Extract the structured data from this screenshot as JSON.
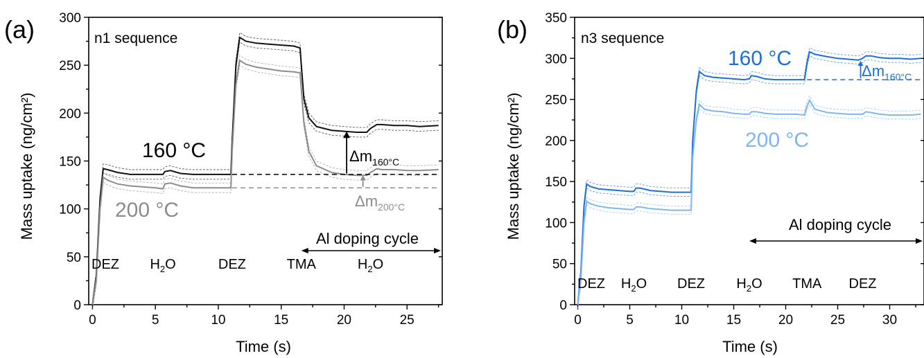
{
  "chart_data": [
    {
      "type": "line",
      "panel_label": "(a)",
      "sequence_label": "n1 sequence",
      "xlabel": "Time (s)",
      "ylabel": "Mass uptake (ng/cm²)",
      "xlim": [
        -0.3,
        27.8
      ],
      "ylim": [
        0,
        300
      ],
      "xticks": [
        0,
        5,
        10,
        15,
        20,
        25
      ],
      "yticks": [
        0,
        50,
        100,
        150,
        200,
        250,
        300
      ],
      "grid": false,
      "series": [
        {
          "name": "160 °C",
          "color": "#111111",
          "x": [
            0,
            0.3,
            0.6,
            0.85,
            1.2,
            2,
            3,
            4,
            5,
            5.6,
            5.75,
            6.2,
            7,
            8,
            9,
            10,
            11,
            11.1,
            11.4,
            11.7,
            12.2,
            13,
            14,
            15,
            16,
            16.5,
            16.6,
            16.8,
            17.2,
            17.8,
            19,
            20,
            21,
            21.8,
            22.1,
            22.6,
            23,
            24,
            25,
            26,
            27.5
          ],
          "y": [
            0,
            30,
            110,
            142,
            141,
            138,
            136,
            136,
            136,
            136,
            139,
            140,
            137,
            136,
            136,
            136,
            136,
            170,
            250,
            279,
            275,
            273,
            272,
            271,
            270,
            268,
            250,
            215,
            195,
            186,
            182,
            181,
            180,
            180,
            184,
            188,
            188,
            187,
            187,
            186,
            187
          ]
        },
        {
          "name": "200 °C",
          "color": "#8c8c8c",
          "x": [
            0,
            0.3,
            0.6,
            0.85,
            1.2,
            2,
            3,
            4,
            5,
            5.6,
            5.75,
            6.2,
            7,
            8,
            9,
            10,
            11,
            11.1,
            11.4,
            11.7,
            12.2,
            13,
            14,
            15,
            16,
            16.5,
            16.6,
            16.8,
            17.2,
            17.8,
            19,
            20,
            21,
            21.8,
            22.1,
            22.6,
            23,
            24,
            25,
            26,
            27.5
          ],
          "y": [
            0,
            25,
            100,
            133,
            130,
            126,
            124,
            123,
            122,
            121,
            126,
            127,
            124,
            122,
            122,
            122,
            122,
            160,
            230,
            255,
            251,
            248,
            246,
            244,
            243,
            242,
            225,
            190,
            160,
            145,
            138,
            136,
            135,
            135,
            138,
            142,
            141,
            141,
            140,
            140,
            141
          ]
        }
      ],
      "annotations": {
        "temp_160": "160 °C",
        "temp_200": "200 °C",
        "delta_160_base": "Δm",
        "delta_160_sub": "160°C",
        "delta_200_base": "Δm",
        "delta_200_sub": "200°C",
        "doping": "Al doping cycle",
        "precursor_lines_x": [
          5.6,
          11.1,
          16.6,
          22.1
        ],
        "precursors": [
          {
            "base": "DEZ",
            "sub": "",
            "tail": ""
          },
          {
            "base": "H",
            "sub": "2",
            "tail": "O"
          },
          {
            "base": "DEZ",
            "sub": "",
            "tail": ""
          },
          {
            "base": "TMA",
            "sub": "",
            "tail": ""
          },
          {
            "base": "H",
            "sub": "2",
            "tail": "O"
          }
        ]
      }
    },
    {
      "type": "line",
      "panel_label": "(b)",
      "sequence_label": "n3 sequence",
      "xlabel": "Time (s)",
      "ylabel": "Mass uptake (ng/cm²)",
      "xlim": [
        -0.3,
        33.3
      ],
      "ylim": [
        0,
        350
      ],
      "xticks": [
        0,
        5,
        10,
        15,
        20,
        25,
        30
      ],
      "yticks": [
        0,
        50,
        100,
        150,
        200,
        250,
        300,
        350
      ],
      "grid": false,
      "series": [
        {
          "name": "160 °C",
          "color": "#1c6fd6",
          "x": [
            0,
            0.3,
            0.6,
            0.85,
            1.2,
            2,
            3,
            4,
            5,
            5.4,
            5.6,
            6,
            7,
            8,
            9,
            10,
            10.9,
            11.05,
            11.4,
            11.7,
            12.2,
            13,
            14,
            15,
            16,
            16.5,
            16.7,
            17.2,
            18,
            19,
            20,
            21,
            21.8,
            22.05,
            22.3,
            22.8,
            24,
            25,
            26,
            27,
            27.4,
            27.7,
            28.2,
            29,
            30,
            31,
            32,
            33
          ],
          "y": [
            0,
            40,
            120,
            147,
            144,
            141,
            140,
            139,
            138,
            138,
            142,
            142,
            139,
            138,
            137,
            137,
            137,
            200,
            260,
            284,
            279,
            277,
            276,
            275,
            274,
            275,
            279,
            278,
            275,
            274,
            274,
            274,
            274,
            295,
            308,
            305,
            302,
            300,
            299,
            298,
            300,
            303,
            303,
            301,
            300,
            300,
            299,
            300
          ]
        },
        {
          "name": "200 °C",
          "color": "#7fb6ee",
          "x": [
            0,
            0.3,
            0.6,
            0.85,
            1.2,
            2,
            3,
            4,
            5,
            5.4,
            5.6,
            6,
            7,
            8,
            9,
            10,
            10.9,
            11.05,
            11.4,
            11.7,
            12.2,
            13,
            14,
            15,
            16,
            16.5,
            16.7,
            17.2,
            18,
            19,
            20,
            21,
            21.8,
            22.05,
            22.3,
            22.8,
            24,
            25,
            26,
            27,
            27.4,
            27.7,
            28.2,
            29,
            30,
            31,
            32,
            33
          ],
          "y": [
            0,
            30,
            100,
            126,
            123,
            120,
            118,
            117,
            116,
            116,
            119,
            119,
            117,
            116,
            115,
            115,
            115,
            180,
            225,
            244,
            238,
            236,
            235,
            233,
            232,
            232,
            235,
            235,
            233,
            232,
            232,
            232,
            231,
            242,
            249,
            238,
            234,
            233,
            232,
            232,
            232,
            235,
            234,
            232,
            231,
            231,
            231,
            232
          ]
        }
      ],
      "annotations": {
        "temp_160": "160 °C",
        "temp_200": "200 °C",
        "delta_160_base": "Δm",
        "delta_160_sub": "160°C",
        "doping": "Al doping cycle",
        "precursor_lines_x": [
          5.4,
          10.9,
          16.5,
          22.05,
          27.4
        ],
        "precursors": [
          {
            "base": "DEZ",
            "sub": "",
            "tail": ""
          },
          {
            "base": "H",
            "sub": "2",
            "tail": "O"
          },
          {
            "base": "DEZ",
            "sub": "",
            "tail": ""
          },
          {
            "base": "H",
            "sub": "2",
            "tail": "O"
          },
          {
            "base": "TMA",
            "sub": "",
            "tail": ""
          },
          {
            "base": "DEZ",
            "sub": "",
            "tail": ""
          }
        ]
      }
    }
  ]
}
